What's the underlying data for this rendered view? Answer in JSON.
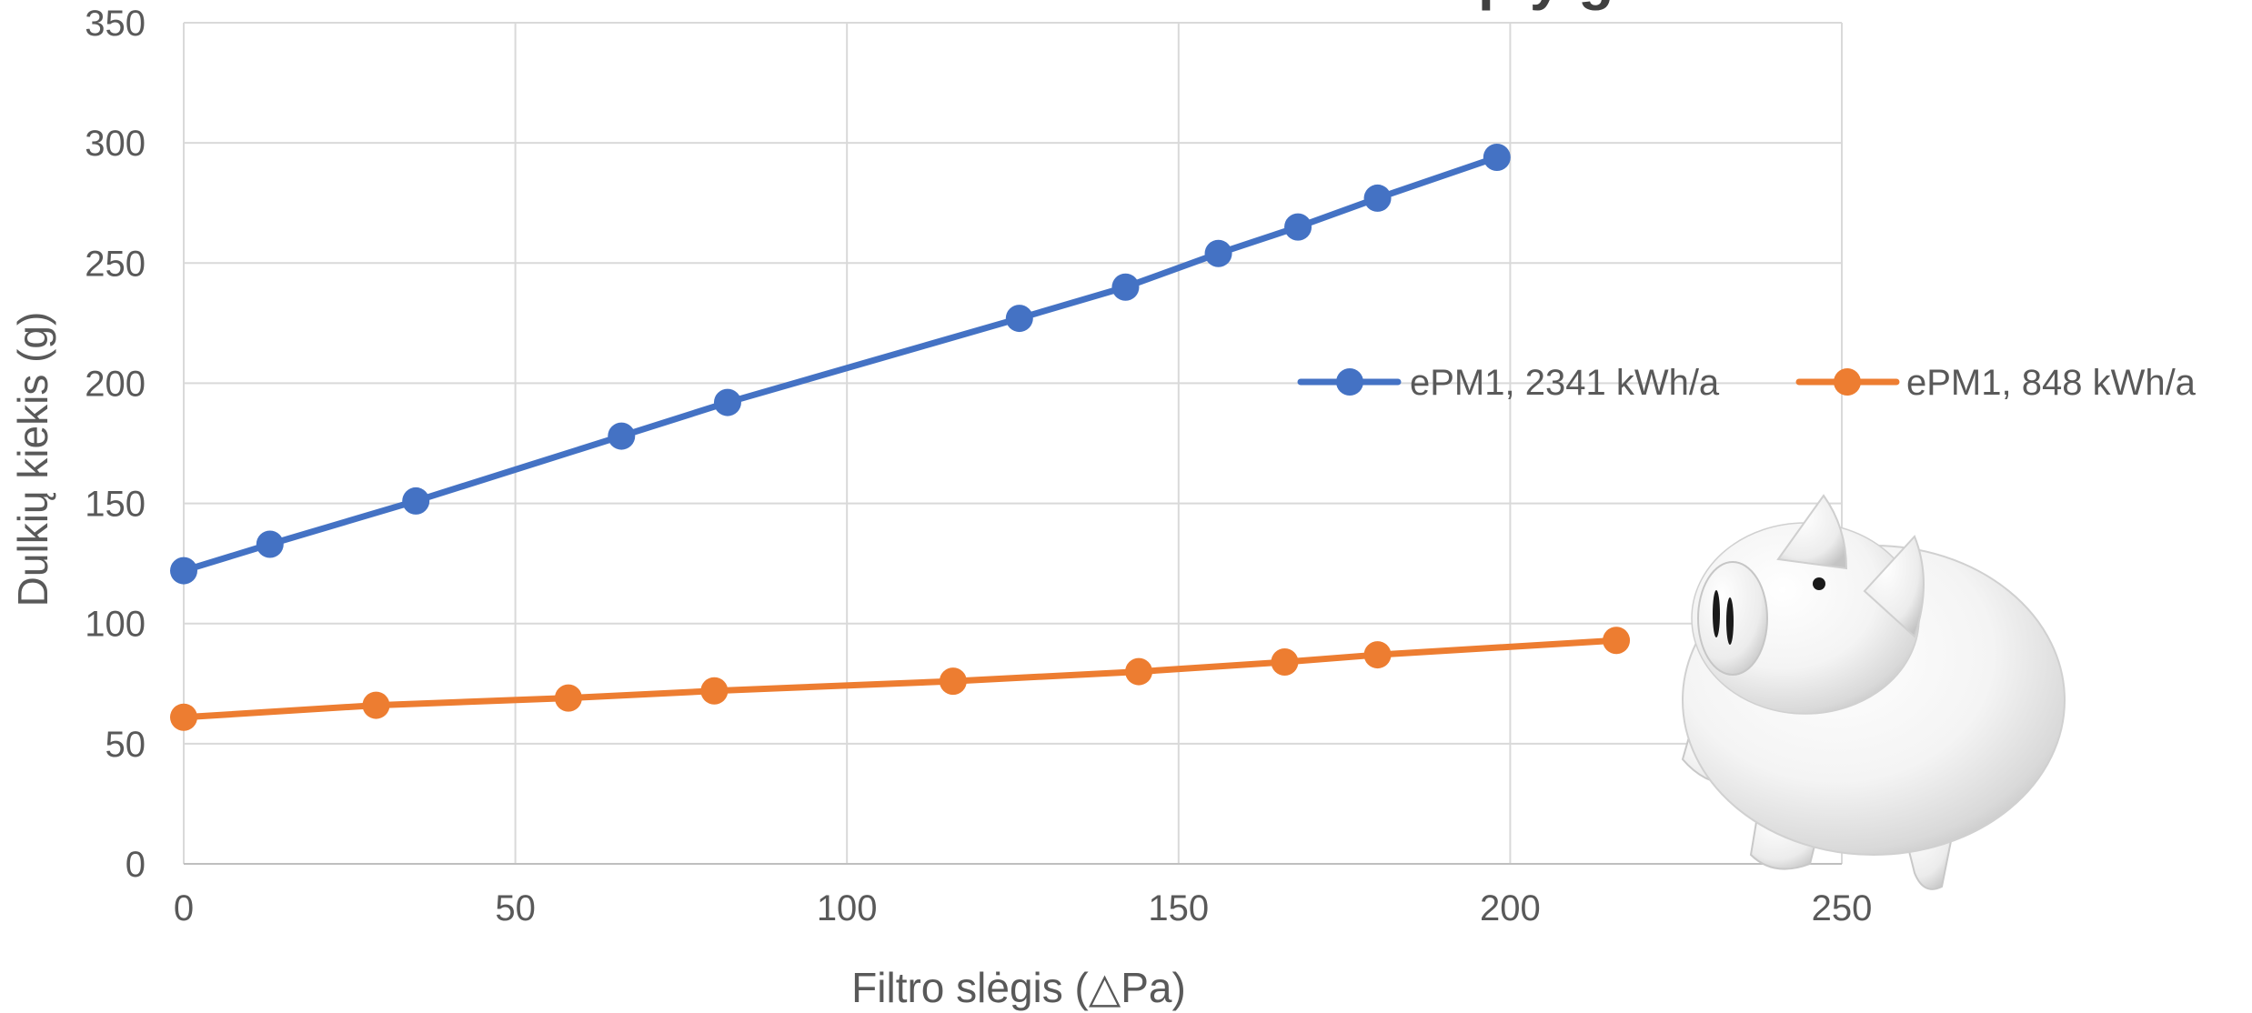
{
  "chart_data": {
    "type": "line",
    "title_fragment": "p y g",
    "xlabel": "Filtro slėgis (△Pa)",
    "ylabel": "Dulkių kiekis (g)",
    "xlim": [
      0,
      250
    ],
    "ylim": [
      0,
      350
    ],
    "x_ticks": [
      "0",
      "50",
      "100",
      "150",
      "200",
      "250"
    ],
    "y_ticks": [
      "0",
      "50",
      "100",
      "150",
      "200",
      "250",
      "300",
      "350"
    ],
    "grid": true,
    "legend_placement": "right",
    "series": [
      {
        "name": "ePM1, 2341 kWh/a",
        "color": "#4472C4",
        "x": [
          0,
          13,
          35,
          66,
          82,
          126,
          142,
          156,
          168,
          180,
          198
        ],
        "y": [
          122,
          133,
          151,
          178,
          192,
          227,
          240,
          254,
          265,
          277,
          294
        ]
      },
      {
        "name": "ePM1, 848 kWh/a",
        "color": "#ED7D31",
        "x": [
          0,
          29,
          58,
          80,
          116,
          144,
          166,
          180,
          216
        ],
        "y": [
          61,
          66,
          69,
          72,
          76,
          80,
          84,
          87,
          93
        ]
      }
    ],
    "decoration": "piggy-bank-image"
  }
}
